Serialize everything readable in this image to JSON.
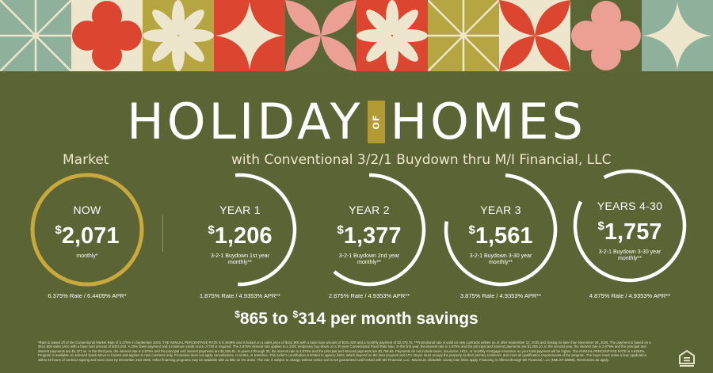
{
  "colors": {
    "background": "#5b6435",
    "sage": "#8fb09a",
    "cream": "#ede6cc",
    "red": "#dc4530",
    "gold": "#b5a642",
    "olive": "#5b6636",
    "pink": "#ec9f93",
    "ring_market": "#c9a93c",
    "ring_promo": "#ffffff"
  },
  "tiles": [
    {
      "name": "asterisk-lines-tile",
      "bg": "sage",
      "fg": "cream"
    },
    {
      "name": "clover-tile",
      "bg": "cream",
      "fg": "red"
    },
    {
      "name": "flower-tile",
      "bg": "gold",
      "fg": "cream"
    },
    {
      "name": "star-tile",
      "bg": "red",
      "fg": "cream"
    },
    {
      "name": "petals-x-tile",
      "bg": "olive",
      "fg": "pink"
    },
    {
      "name": "flower-tile",
      "bg": "red",
      "fg": "cream"
    },
    {
      "name": "asterisk-lines-tile",
      "bg": "gold",
      "fg": "cream"
    },
    {
      "name": "petals-x-tile",
      "bg": "cream",
      "fg": "red"
    },
    {
      "name": "clover-tile",
      "bg": "olive",
      "fg": "pink"
    },
    {
      "name": "star-tile",
      "bg": "sage",
      "fg": "cream"
    }
  ],
  "title": {
    "left": "HOLIDAY",
    "of": "OF",
    "right": "HOMES"
  },
  "market_label": "Market",
  "promo_label": "with Conventional 3/2/1 Buydown thru M/I Financial, LLC",
  "payments": [
    {
      "label": "NOW",
      "currency": "$",
      "amount": "2,071",
      "note": "monthly*",
      "rate": "6.375% Rate / 6.4409% APR*",
      "arc_fraction": 1.0
    },
    {
      "label": "YEAR 1",
      "currency": "$",
      "amount": "1,206",
      "note": "3-2-1 Buydown 1st year monthly**",
      "rate": "1.875% Rate / 4.9353% APR**",
      "arc_fraction": 0.52
    },
    {
      "label": "YEAR 2",
      "currency": "$",
      "amount": "1,377",
      "note": "3-2-1 Buydown 2nd year monthly**",
      "rate": "2.875% Rate / 4.9353% APR**",
      "arc_fraction": 0.61
    },
    {
      "label": "YEAR 3",
      "currency": "$",
      "amount": "1,561",
      "note": "3-2-1 Buydown 3-30 year monthly**",
      "rate": "3.875% Rate / 4.9353% APR**",
      "arc_fraction": 0.76
    },
    {
      "label": "YEARS 4-30",
      "currency": "$",
      "amount": "1,757",
      "note": "3-2-1 Buydown 3-30 year monthly**",
      "rate": "4.875% Rate / 4.9353% APR**",
      "arc_fraction": 0.9
    }
  ],
  "savings": {
    "c1": "$",
    "from": "865",
    "to_word": " to ",
    "c2": "$",
    "to": "314",
    "suffix": " per month savings"
  },
  "fine_print": "*Rate is based off of the Conventional Market Rate of 6.375% in September 2025. THE ANNUAL PERCENTAGE RATE is 6.4409% and is based on a sales price of $414,900 with a base loan amount of $331,920 and a monthly payment of $2,070.75. **Promotional rate is valid on new contracts written on or after September 12, 2025 and closing no later than November 28, 2025. The payment is based on a $414,900 sales price with a base loan amount of $331,920. A 20% down payment and a minimum credit score of 720 is required. The 4.875% interest rate applies to a 3/2/1 temporary buy-down on a 30-year Conventional Fixed Rate loan. In the first year, the interest rate is 1.875% and the principal and interest payments are $1,206.10. In the second year, the interest rate is 2.875% and the principal and interest payments are $1,377.xx. In the third year, the interest rate is 3.875% and the principal and interest payments are $1,560.81. In years 4 through 30, the interest rate is 4.875% and the principal and interest payments are $1,756.55. Payments do not include taxes, insurance, HOA, or monthly mortgage insurance so your total payment will be higher. The ANNUAL PERCENTAGE RATE is 4.9353%. Program is available on selected Quick Move-In homes and applies to new contracts only. Promotion does not apply cancellations, re-writes, or transfers. This seller's contribution is limited to agency limits, which depend on the loan program and LTV. Buyer must occupy the property as their primary residence and meet all qualification requirements of the program. The buyer must make a loan application within 48 hours of contract signing and must close by December 31st 2025. Other financing programs may be available with as little as 5% down. The rate is subject to change without notice and is not guaranteed until locked with M/I Financial, LLC. Maximum allowable county loan limits apply. Financing is offered through M/I Financial, LLC (NMLS# 40880). Restrictions do apply.",
  "equal_housing_icon": "equal-housing-opportunity-icon"
}
